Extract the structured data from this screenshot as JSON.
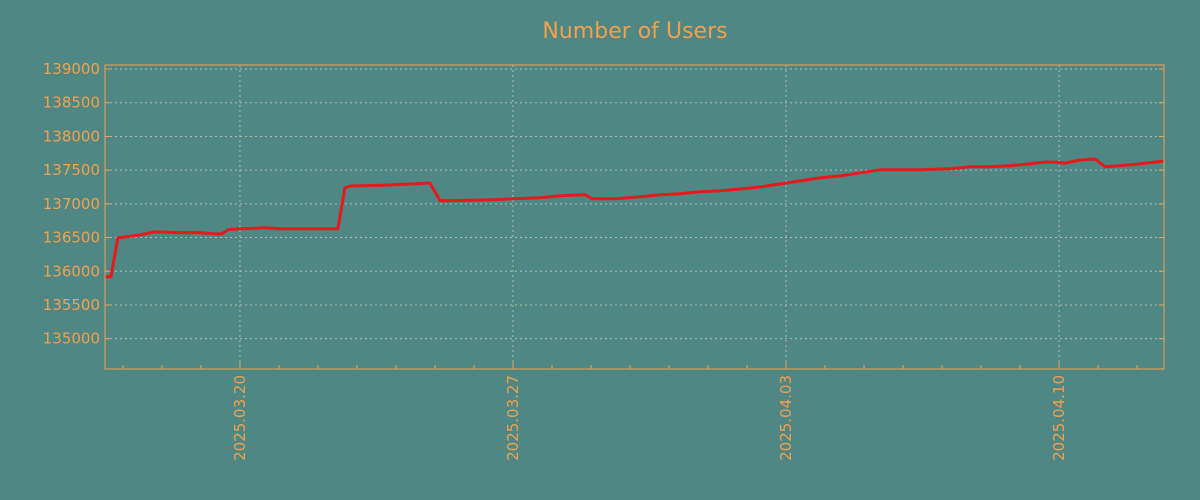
{
  "chart_data": {
    "type": "line",
    "title": "Number of Users",
    "xlabel": "",
    "ylabel": "",
    "x_unit": "days since 2025.03.20",
    "xlim": [
      -3.46,
      23.69
    ],
    "ylim": [
      134550,
      139060
    ],
    "grid": true,
    "colors": {
      "background": "#4f8785",
      "axis": "#f5a04a",
      "line": "#e8191a",
      "grid": "#b0b8b0"
    },
    "yticks": [
      135000,
      135500,
      136000,
      136500,
      137000,
      137500,
      138000,
      138500,
      139000
    ],
    "ytick_labels": [
      "135000",
      "135500",
      "136000",
      "136500",
      "137000",
      "137500",
      "138000",
      "138500",
      "139000"
    ],
    "xticks": [
      0,
      7,
      14,
      21
    ],
    "xtick_labels": [
      "2025.03.20",
      "2025.03.27",
      "2025.04.03",
      "2025.04.10"
    ],
    "series": [
      {
        "name": "Number of Users",
        "x": [
          -3.46,
          -3.31,
          -3.13,
          -2.95,
          -2.56,
          -2.18,
          -1.54,
          -1.03,
          -0.64,
          -0.46,
          -0.31,
          0,
          0.64,
          1.03,
          1.54,
          2.51,
          2.69,
          2.82,
          3.85,
          4.36,
          4.87,
          5.13,
          5.38,
          6.41,
          7.0,
          7.69,
          8.21,
          8.85,
          9.03,
          9.62,
          10.26,
          10.77,
          11.28,
          11.79,
          12.31,
          12.82,
          13.33,
          14.0,
          14.36,
          14.87,
          15.38,
          15.9,
          16.41,
          16.92,
          17.44,
          18.21,
          18.72,
          19.23,
          19.74,
          20.26,
          20.64,
          20.9,
          21.15,
          21.54,
          21.92,
          22.18,
          22.56,
          23.08,
          23.69
        ],
        "values": [
          135920,
          135920,
          136495,
          136510,
          136540,
          136585,
          136570,
          136570,
          136555,
          136555,
          136615,
          136630,
          136645,
          136630,
          136630,
          136630,
          137235,
          137265,
          137280,
          137295,
          137310,
          137045,
          137045,
          137060,
          137075,
          137090,
          137120,
          137135,
          137075,
          137075,
          137105,
          137135,
          137150,
          137180,
          137195,
          137220,
          137250,
          137310,
          137340,
          137385,
          137415,
          137460,
          137505,
          137505,
          137505,
          137520,
          137550,
          137550,
          137565,
          137595,
          137620,
          137620,
          137605,
          137650,
          137665,
          137550,
          137565,
          137595,
          137635
        ]
      }
    ]
  }
}
